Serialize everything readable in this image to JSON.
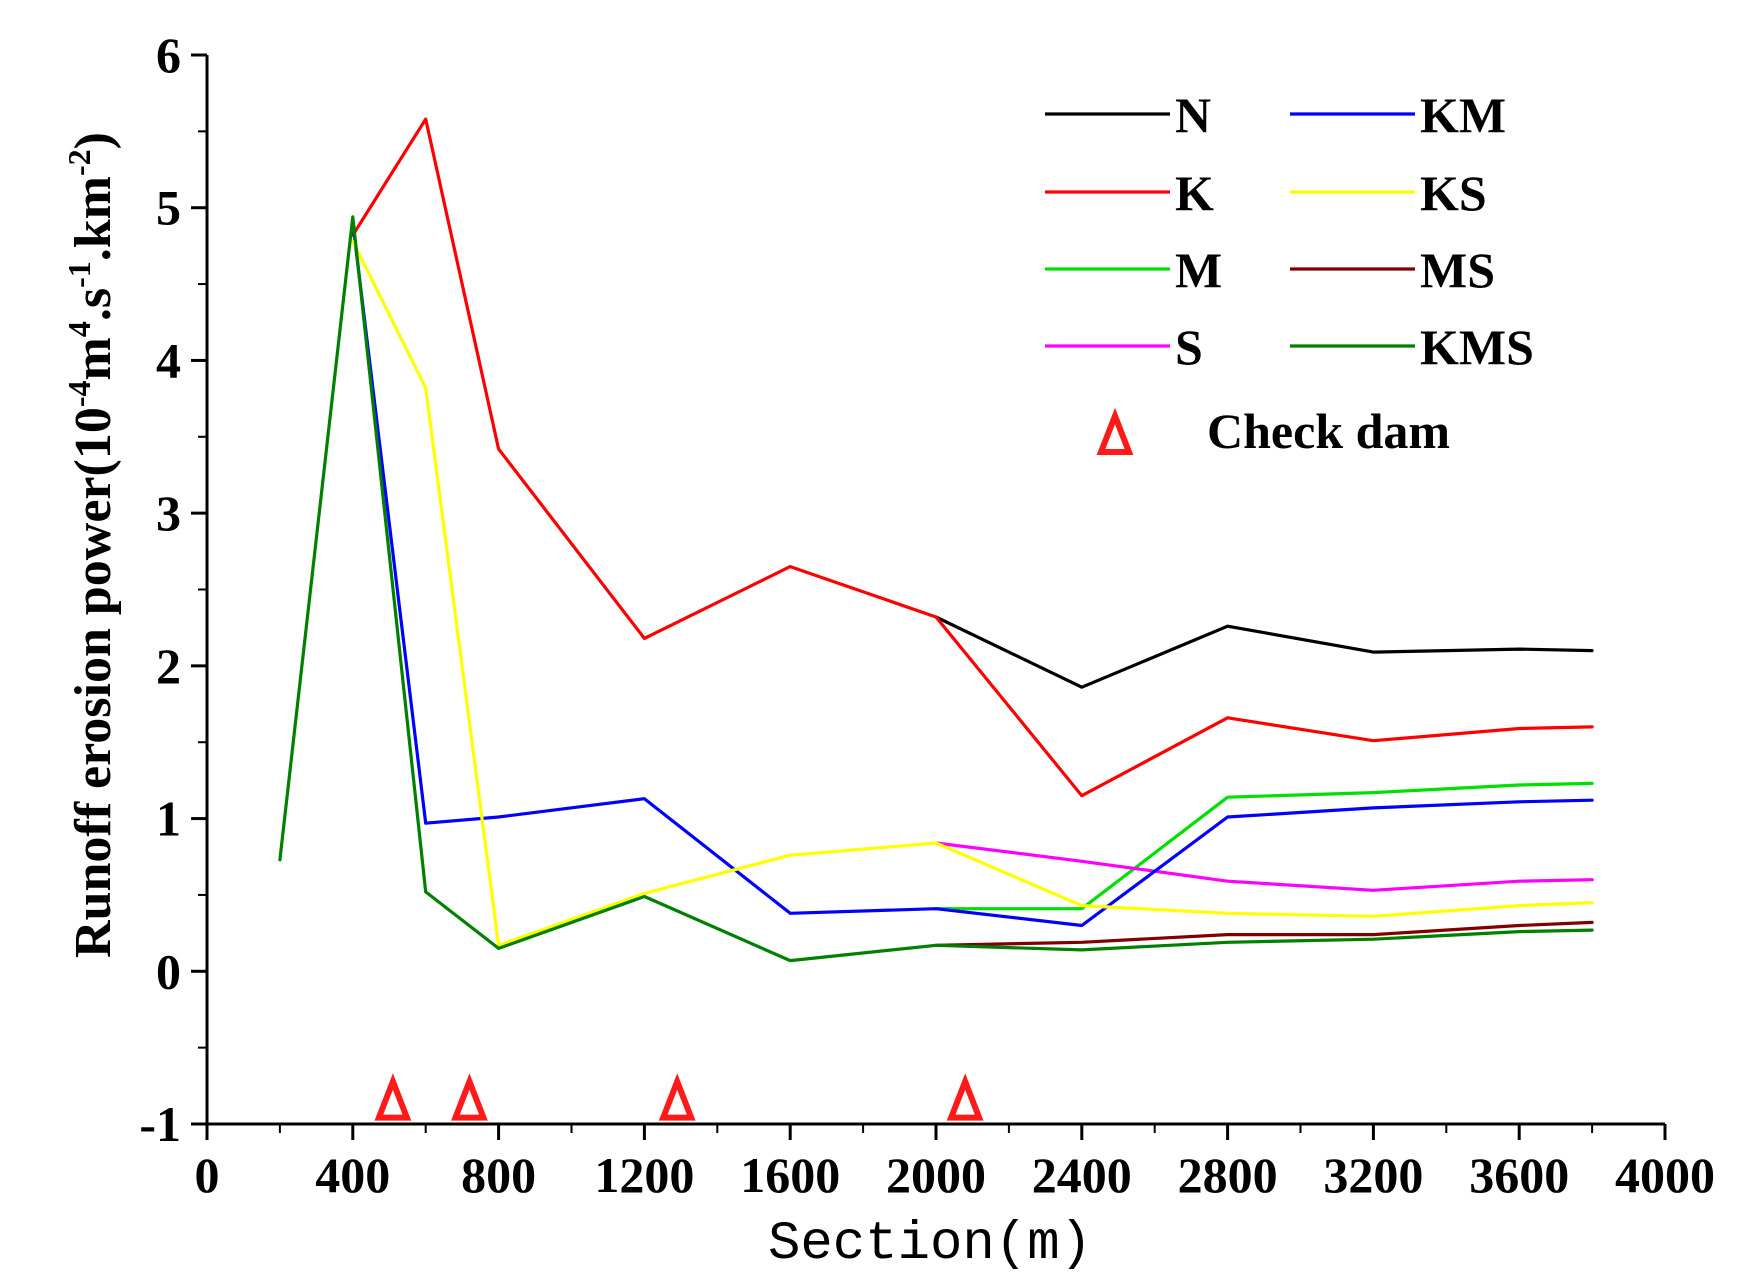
{
  "chart_data": {
    "type": "line",
    "title": "",
    "xlabel": "Section(m)",
    "ylabel": {
      "prefix": "Runoff erosion power(10",
      "exp1": "-4",
      "mid1": "m",
      "exp2": "4",
      "mid2": ".s",
      "exp3": "-1",
      "mid3": ".km",
      "exp4": "-2",
      "suffix": ")"
    },
    "xlim": [
      0,
      4000
    ],
    "ylim": [
      -1,
      6
    ],
    "xticks": [
      0,
      400,
      800,
      1200,
      1600,
      2000,
      2400,
      2800,
      3200,
      3600,
      4000
    ],
    "yticks": [
      -1,
      0,
      1,
      2,
      3,
      4,
      5,
      6
    ],
    "grid": false,
    "legend_position": "top-right",
    "series": [
      {
        "name": "N",
        "color": "#000000",
        "points": [
          [
            2000,
            2.32
          ],
          [
            2400,
            1.86
          ],
          [
            2800,
            2.26
          ],
          [
            3200,
            2.09
          ],
          [
            3600,
            2.11
          ],
          [
            3800,
            2.1
          ]
        ]
      },
      {
        "name": "K",
        "color": "#ff0000",
        "points": [
          [
            400,
            4.82
          ],
          [
            600,
            5.58
          ],
          [
            800,
            3.42
          ],
          [
            1200,
            2.18
          ],
          [
            1600,
            2.65
          ],
          [
            2000,
            2.32
          ],
          [
            2400,
            1.15
          ],
          [
            2800,
            1.66
          ],
          [
            3200,
            1.51
          ],
          [
            3600,
            1.59
          ],
          [
            3800,
            1.6
          ]
        ]
      },
      {
        "name": "M",
        "color": "#00e000",
        "points": [
          [
            2000,
            0.41
          ],
          [
            2400,
            0.41
          ],
          [
            2800,
            1.14
          ],
          [
            3200,
            1.17
          ],
          [
            3600,
            1.22
          ],
          [
            3800,
            1.23
          ]
        ]
      },
      {
        "name": "S",
        "color": "#ff00ff",
        "points": [
          [
            2000,
            0.84
          ],
          [
            2400,
            0.72
          ],
          [
            2800,
            0.59
          ],
          [
            3200,
            0.53
          ],
          [
            3600,
            0.59
          ],
          [
            3800,
            0.6
          ]
        ]
      },
      {
        "name": "KM",
        "color": "#0000ff",
        "points": [
          [
            400,
            4.9
          ],
          [
            600,
            0.97
          ],
          [
            800,
            1.01
          ],
          [
            1200,
            1.13
          ],
          [
            1600,
            0.38
          ],
          [
            2000,
            0.41
          ],
          [
            2400,
            0.3
          ],
          [
            2800,
            1.01
          ],
          [
            3200,
            1.07
          ],
          [
            3600,
            1.11
          ],
          [
            3800,
            1.12
          ]
        ]
      },
      {
        "name": "KS",
        "color": "#ffff00",
        "points": [
          [
            400,
            4.78
          ],
          [
            600,
            3.82
          ],
          [
            800,
            0.17
          ],
          [
            1200,
            0.51
          ],
          [
            1600,
            0.76
          ],
          [
            2000,
            0.84
          ],
          [
            2400,
            0.43
          ],
          [
            2800,
            0.38
          ],
          [
            3200,
            0.36
          ],
          [
            3600,
            0.43
          ],
          [
            3800,
            0.45
          ]
        ]
      },
      {
        "name": "MS",
        "color": "#800000",
        "points": [
          [
            2000,
            0.17
          ],
          [
            2400,
            0.19
          ],
          [
            2800,
            0.24
          ],
          [
            3200,
            0.24
          ],
          [
            3600,
            0.3
          ],
          [
            3800,
            0.32
          ]
        ]
      },
      {
        "name": "KMS",
        "color": "#008000",
        "points": [
          [
            200,
            0.73
          ],
          [
            400,
            4.94
          ],
          [
            600,
            0.52
          ],
          [
            800,
            0.15
          ],
          [
            1200,
            0.49
          ],
          [
            1600,
            0.07
          ],
          [
            2000,
            0.17
          ],
          [
            2400,
            0.14
          ],
          [
            2800,
            0.19
          ],
          [
            3200,
            0.21
          ],
          [
            3600,
            0.26
          ],
          [
            3800,
            0.27
          ]
        ]
      }
    ],
    "check_dams": {
      "label": "Check dam",
      "color": "#ff1a1a",
      "x": [
        510,
        720,
        1290,
        2080
      ],
      "y": -0.84
    },
    "legend_order": [
      "N",
      "KM",
      "K",
      "KS",
      "M",
      "MS",
      "S",
      "KMS"
    ]
  }
}
